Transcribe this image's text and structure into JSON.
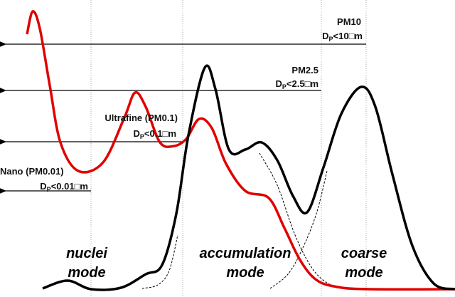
{
  "labels": {
    "pm10": {
      "name": "PM10",
      "main": "D",
      "sub": "P",
      "rest": "<10□m"
    },
    "pm25": {
      "name": "PM2.5",
      "main": "D",
      "sub": "P",
      "rest": "<2.5□m"
    },
    "pm01": {
      "name": "Ultrafine (PM0.1)",
      "main": "D",
      "sub": "P",
      "rest": "<0.1□m"
    },
    "pm001": {
      "name": "Nano (PM0.01)",
      "main": "D",
      "sub": "P",
      "rest": "<0.01□m"
    }
  },
  "modes": [
    {
      "line1": "nuclei",
      "line2": "mode"
    },
    {
      "line1": "accumulation",
      "line2": "mode"
    },
    {
      "line1": "coarse",
      "line2": "mode"
    }
  ]
}
